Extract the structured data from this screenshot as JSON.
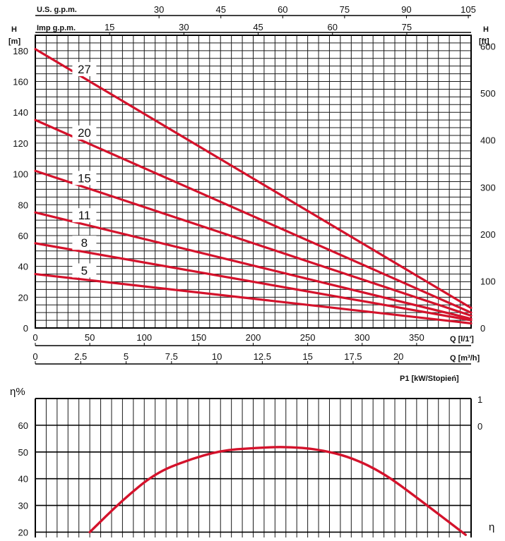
{
  "chart_data": [
    {
      "type": "line",
      "title": "",
      "top_axis_1": {
        "label": "U.S. g.p.m.",
        "ticks": [
          "30",
          "45",
          "60",
          "75",
          "90",
          "105"
        ]
      },
      "top_axis_2": {
        "label": "Imp g.p.m.",
        "ticks": [
          "15",
          "30",
          "45",
          "60",
          "75"
        ]
      },
      "left_axis": {
        "label": "H",
        "unit": "[m]",
        "ylim": [
          0,
          190
        ],
        "ticks": [
          "0",
          "20",
          "40",
          "60",
          "80",
          "100",
          "120",
          "140",
          "160",
          "180"
        ]
      },
      "right_axis": {
        "label": "H",
        "unit": "[ft]",
        "ticks": [
          "0",
          "100",
          "200",
          "300",
          "400",
          "500",
          "600"
        ]
      },
      "bottom_axis_1": {
        "label": "Q [l/1']",
        "xlim": [
          0,
          400
        ],
        "ticks": [
          "0",
          "50",
          "100",
          "150",
          "200",
          "250",
          "300",
          "350"
        ]
      },
      "bottom_axis_2": {
        "label": "Q [m³/h]",
        "ticks": [
          "0",
          "2.5",
          "5",
          "7.5",
          "10",
          "12.5",
          "15",
          "17.5",
          "20"
        ]
      },
      "grid": true,
      "series": [
        {
          "name": "27",
          "x": [
            0,
            400
          ],
          "y": [
            181,
            13
          ]
        },
        {
          "name": "20",
          "x": [
            0,
            400
          ],
          "y": [
            135,
            10
          ]
        },
        {
          "name": "15",
          "x": [
            0,
            400
          ],
          "y": [
            102,
            8
          ]
        },
        {
          "name": "11",
          "x": [
            0,
            400
          ],
          "y": [
            75,
            6
          ]
        },
        {
          "name": "8",
          "x": [
            0,
            400
          ],
          "y": [
            55,
            5
          ]
        },
        {
          "name": "5",
          "x": [
            0,
            400
          ],
          "y": [
            35,
            3
          ]
        }
      ]
    },
    {
      "type": "line",
      "title": "",
      "left_axis": {
        "label": "η%",
        "ylim": [
          18,
          70
        ],
        "ticks": [
          "20",
          "30",
          "40",
          "50",
          "60"
        ]
      },
      "right_axis": {
        "label": "P1 [kW/Stopień]",
        "ticks": [
          "1",
          "0"
        ]
      },
      "right_series_label": "η",
      "xlim": [
        0,
        400
      ],
      "grid": true,
      "series": [
        {
          "name": "η",
          "x": [
            50,
            80,
            110,
            140,
            170,
            200,
            230,
            260,
            290,
            320,
            350,
            395
          ],
          "y": [
            20,
            32,
            42,
            47,
            50.5,
            51.5,
            52,
            51,
            48,
            42,
            33,
            19
          ]
        }
      ]
    }
  ]
}
